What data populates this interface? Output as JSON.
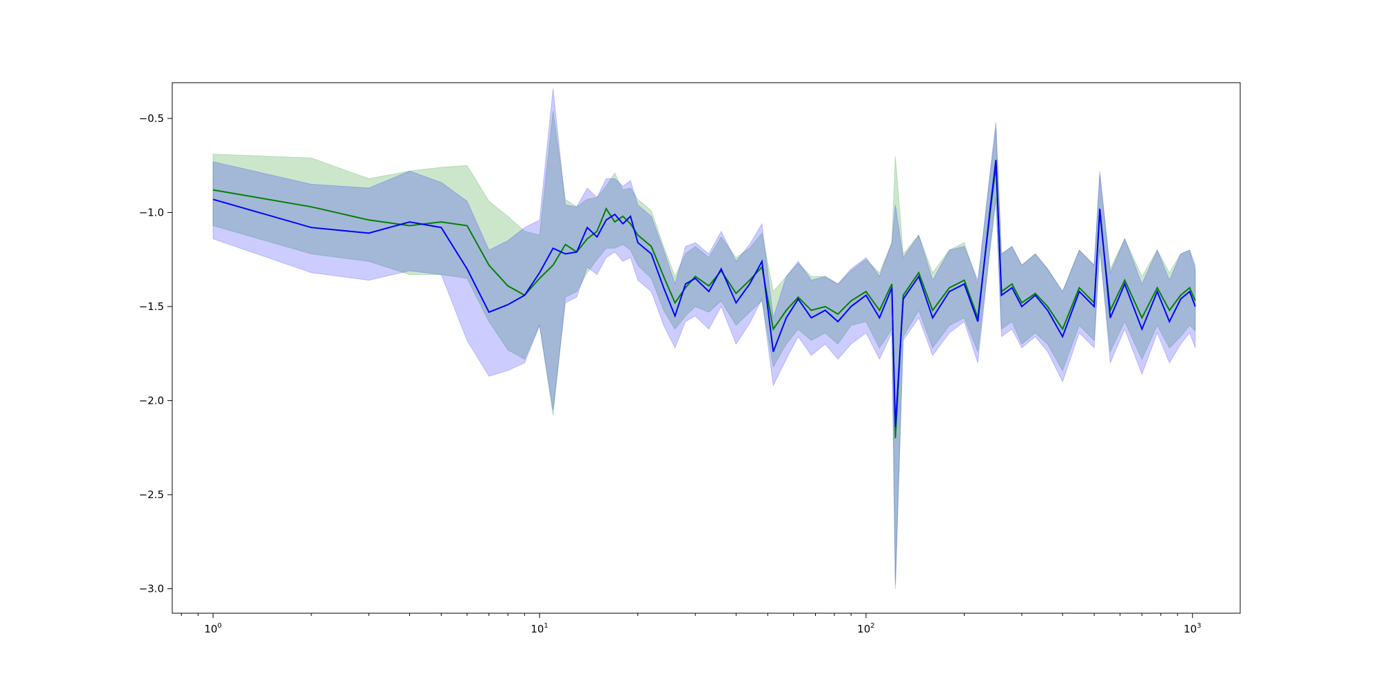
{
  "chart_data": {
    "type": "line",
    "title": "",
    "xlabel": "",
    "ylabel": "",
    "xscale": "log",
    "xlim": [
      0.75,
      1400
    ],
    "ylim": [
      -3.13,
      -0.31
    ],
    "grid": false,
    "x_ticks": [
      {
        "value": 1,
        "base": "10",
        "exp": "0"
      },
      {
        "value": 10,
        "base": "10",
        "exp": "1"
      },
      {
        "value": 100,
        "base": "10",
        "exp": "2"
      },
      {
        "value": 1000,
        "base": "10",
        "exp": "3"
      }
    ],
    "y_ticks": [
      {
        "value": -0.5,
        "label": "−0.5"
      },
      {
        "value": -1.0,
        "label": "−1.0"
      },
      {
        "value": -1.5,
        "label": "−1.5"
      },
      {
        "value": -2.0,
        "label": "−2.0"
      },
      {
        "value": -2.5,
        "label": "−2.5"
      },
      {
        "value": -3.0,
        "label": "−3.0"
      }
    ],
    "colors": {
      "green": "#008000",
      "blue": "#0000ff",
      "green_band": "#008000",
      "blue_band": "#0000ff"
    },
    "series": [
      {
        "color": "green",
        "x": [
          1,
          2,
          3,
          4,
          5,
          6,
          7,
          8,
          9,
          10,
          11,
          12,
          13,
          14,
          15,
          16,
          17,
          18,
          19,
          20,
          22,
          24,
          26,
          28,
          30,
          33,
          36,
          40,
          44,
          48,
          52,
          57,
          62,
          68,
          75,
          82,
          90,
          100,
          110,
          120,
          123,
          130,
          145,
          160,
          180,
          200,
          220,
          240,
          250,
          260,
          280,
          300,
          330,
          360,
          400,
          450,
          500,
          520,
          560,
          620,
          700,
          780,
          850,
          920,
          980,
          1020
        ],
        "y": [
          -0.88,
          -0.97,
          -1.04,
          -1.07,
          -1.05,
          -1.07,
          -1.28,
          -1.39,
          -1.44,
          -1.35,
          -1.28,
          -1.17,
          -1.21,
          -1.14,
          -1.1,
          -0.98,
          -1.05,
          -1.02,
          -1.06,
          -1.12,
          -1.18,
          -1.34,
          -1.48,
          -1.4,
          -1.34,
          -1.39,
          -1.31,
          -1.43,
          -1.36,
          -1.29,
          -1.62,
          -1.52,
          -1.45,
          -1.52,
          -1.5,
          -1.54,
          -1.47,
          -1.42,
          -1.52,
          -1.38,
          -2.2,
          -1.44,
          -1.32,
          -1.52,
          -1.4,
          -1.36,
          -1.56,
          -1.0,
          -0.75,
          -1.42,
          -1.38,
          -1.48,
          -1.43,
          -1.5,
          -1.62,
          -1.4,
          -1.48,
          -1.0,
          -1.52,
          -1.36,
          -1.56,
          -1.4,
          -1.52,
          -1.44,
          -1.4,
          -1.47
        ],
        "lower": [
          -1.07,
          -1.22,
          -1.26,
          -1.33,
          -1.33,
          -1.35,
          -1.58,
          -1.73,
          -1.78,
          -1.6,
          -2.08,
          -1.45,
          -1.42,
          -1.32,
          -1.25,
          -1.19,
          -1.19,
          -1.17,
          -1.2,
          -1.28,
          -1.35,
          -1.52,
          -1.62,
          -1.55,
          -1.5,
          -1.53,
          -1.47,
          -1.6,
          -1.53,
          -1.47,
          -1.82,
          -1.7,
          -1.62,
          -1.68,
          -1.64,
          -1.7,
          -1.6,
          -1.58,
          -1.72,
          -1.62,
          -2.98,
          -1.66,
          -1.52,
          -1.72,
          -1.6,
          -1.56,
          -1.74,
          -1.2,
          -0.94,
          -1.62,
          -1.58,
          -1.7,
          -1.64,
          -1.7,
          -1.84,
          -1.6,
          -1.68,
          -1.2,
          -1.74,
          -1.58,
          -1.78,
          -1.6,
          -1.72,
          -1.66,
          -1.6,
          -1.63
        ],
        "upper": [
          -0.69,
          -0.71,
          -0.82,
          -0.78,
          -0.76,
          -0.75,
          -0.94,
          -1.02,
          -1.1,
          -1.12,
          -0.46,
          -0.93,
          -0.97,
          -0.93,
          -0.92,
          -0.86,
          -0.79,
          -0.88,
          -0.87,
          -0.93,
          -0.99,
          -1.18,
          -1.34,
          -1.22,
          -1.18,
          -1.24,
          -1.13,
          -1.24,
          -1.19,
          -1.11,
          -1.42,
          -1.34,
          -1.27,
          -1.34,
          -1.34,
          -1.38,
          -1.31,
          -1.25,
          -1.32,
          -1.16,
          -0.7,
          -1.22,
          -1.12,
          -1.32,
          -1.2,
          -1.16,
          -1.38,
          -0.8,
          -0.55,
          -1.22,
          -1.18,
          -1.28,
          -1.22,
          -1.3,
          -1.42,
          -1.2,
          -1.28,
          -0.8,
          -1.3,
          -1.14,
          -1.34,
          -1.2,
          -1.32,
          -1.22,
          -1.2,
          -1.31
        ]
      },
      {
        "color": "blue",
        "x": [
          1,
          2,
          3,
          4,
          5,
          6,
          7,
          8,
          9,
          10,
          11,
          12,
          13,
          14,
          15,
          16,
          17,
          18,
          19,
          20,
          22,
          24,
          26,
          28,
          30,
          33,
          36,
          40,
          44,
          48,
          52,
          57,
          62,
          68,
          75,
          82,
          90,
          100,
          110,
          120,
          123,
          130,
          145,
          160,
          180,
          200,
          220,
          240,
          250,
          260,
          280,
          300,
          330,
          360,
          400,
          450,
          500,
          520,
          560,
          620,
          700,
          780,
          850,
          920,
          980,
          1020
        ],
        "y": [
          -0.93,
          -1.08,
          -1.11,
          -1.05,
          -1.08,
          -1.3,
          -1.53,
          -1.49,
          -1.44,
          -1.32,
          -1.19,
          -1.22,
          -1.21,
          -1.08,
          -1.13,
          -1.04,
          -1.01,
          -1.06,
          -1.02,
          -1.16,
          -1.22,
          -1.4,
          -1.55,
          -1.38,
          -1.35,
          -1.42,
          -1.3,
          -1.48,
          -1.38,
          -1.26,
          -1.74,
          -1.56,
          -1.46,
          -1.56,
          -1.52,
          -1.58,
          -1.5,
          -1.44,
          -1.56,
          -1.4,
          -2.14,
          -1.46,
          -1.34,
          -1.56,
          -1.42,
          -1.38,
          -1.58,
          -0.98,
          -0.72,
          -1.44,
          -1.4,
          -1.5,
          -1.44,
          -1.52,
          -1.66,
          -1.42,
          -1.5,
          -0.98,
          -1.56,
          -1.38,
          -1.62,
          -1.42,
          -1.58,
          -1.46,
          -1.42,
          -1.5
        ],
        "lower": [
          -1.14,
          -1.32,
          -1.36,
          -1.31,
          -1.33,
          -1.68,
          -1.87,
          -1.84,
          -1.8,
          -1.6,
          -2.05,
          -1.48,
          -1.45,
          -1.29,
          -1.33,
          -1.24,
          -1.21,
          -1.26,
          -1.24,
          -1.36,
          -1.42,
          -1.6,
          -1.72,
          -1.58,
          -1.55,
          -1.62,
          -1.5,
          -1.7,
          -1.59,
          -1.46,
          -1.92,
          -1.78,
          -1.66,
          -1.76,
          -1.7,
          -1.78,
          -1.7,
          -1.64,
          -1.78,
          -1.64,
          -3.0,
          -1.68,
          -1.56,
          -1.76,
          -1.64,
          -1.58,
          -1.8,
          -1.18,
          -0.92,
          -1.66,
          -1.62,
          -1.72,
          -1.66,
          -1.74,
          -1.9,
          -1.64,
          -1.72,
          -1.18,
          -1.8,
          -1.62,
          -1.86,
          -1.64,
          -1.8,
          -1.7,
          -1.64,
          -1.72
        ],
        "upper": [
          -0.73,
          -0.85,
          -0.87,
          -0.78,
          -0.84,
          -0.94,
          -1.2,
          -1.15,
          -1.08,
          -1.04,
          -0.34,
          -0.96,
          -0.97,
          -0.87,
          -0.92,
          -0.82,
          -0.82,
          -0.86,
          -0.83,
          -0.96,
          -1.02,
          -1.2,
          -1.38,
          -1.18,
          -1.16,
          -1.22,
          -1.1,
          -1.26,
          -1.17,
          -1.06,
          -1.56,
          -1.34,
          -1.26,
          -1.36,
          -1.34,
          -1.38,
          -1.3,
          -1.24,
          -1.34,
          -1.16,
          -0.96,
          -1.24,
          -1.12,
          -1.36,
          -1.2,
          -1.18,
          -1.36,
          -0.78,
          -0.52,
          -1.22,
          -1.18,
          -1.28,
          -1.22,
          -1.3,
          -1.42,
          -1.2,
          -1.28,
          -0.78,
          -1.32,
          -1.14,
          -1.38,
          -1.2,
          -1.36,
          -1.22,
          -1.2,
          -1.28
        ]
      }
    ]
  }
}
